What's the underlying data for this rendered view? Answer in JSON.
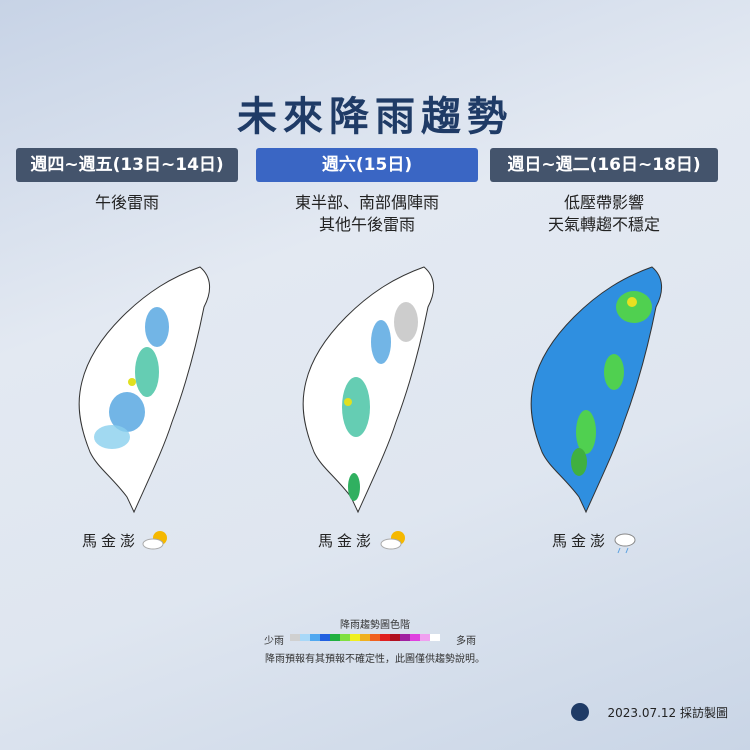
{
  "header": {
    "title": "未來降雨趨勢"
  },
  "panels": [
    {
      "heading": "週四~週五(13日~14日)",
      "description": [
        "午後雷雨"
      ],
      "islands": "馬金澎"
    },
    {
      "heading": "週六(15日)",
      "description": [
        "東半部、南部偶陣雨",
        "其他午後雷雨"
      ],
      "islands": "馬金澎"
    },
    {
      "heading": "週日~週二(16日~18日)",
      "description": [
        "低壓帶影響",
        "天氣轉趨不穩定"
      ],
      "islands": "馬金澎"
    }
  ],
  "legend": {
    "title": "降雨趨勢圖色階",
    "low": "少雨",
    "high": "多雨",
    "note": "降雨預報有其預報不確定性，此圖僅供趨勢說明。"
  },
  "footer": {
    "credit": "2023.07.12 採訪製圖"
  }
}
